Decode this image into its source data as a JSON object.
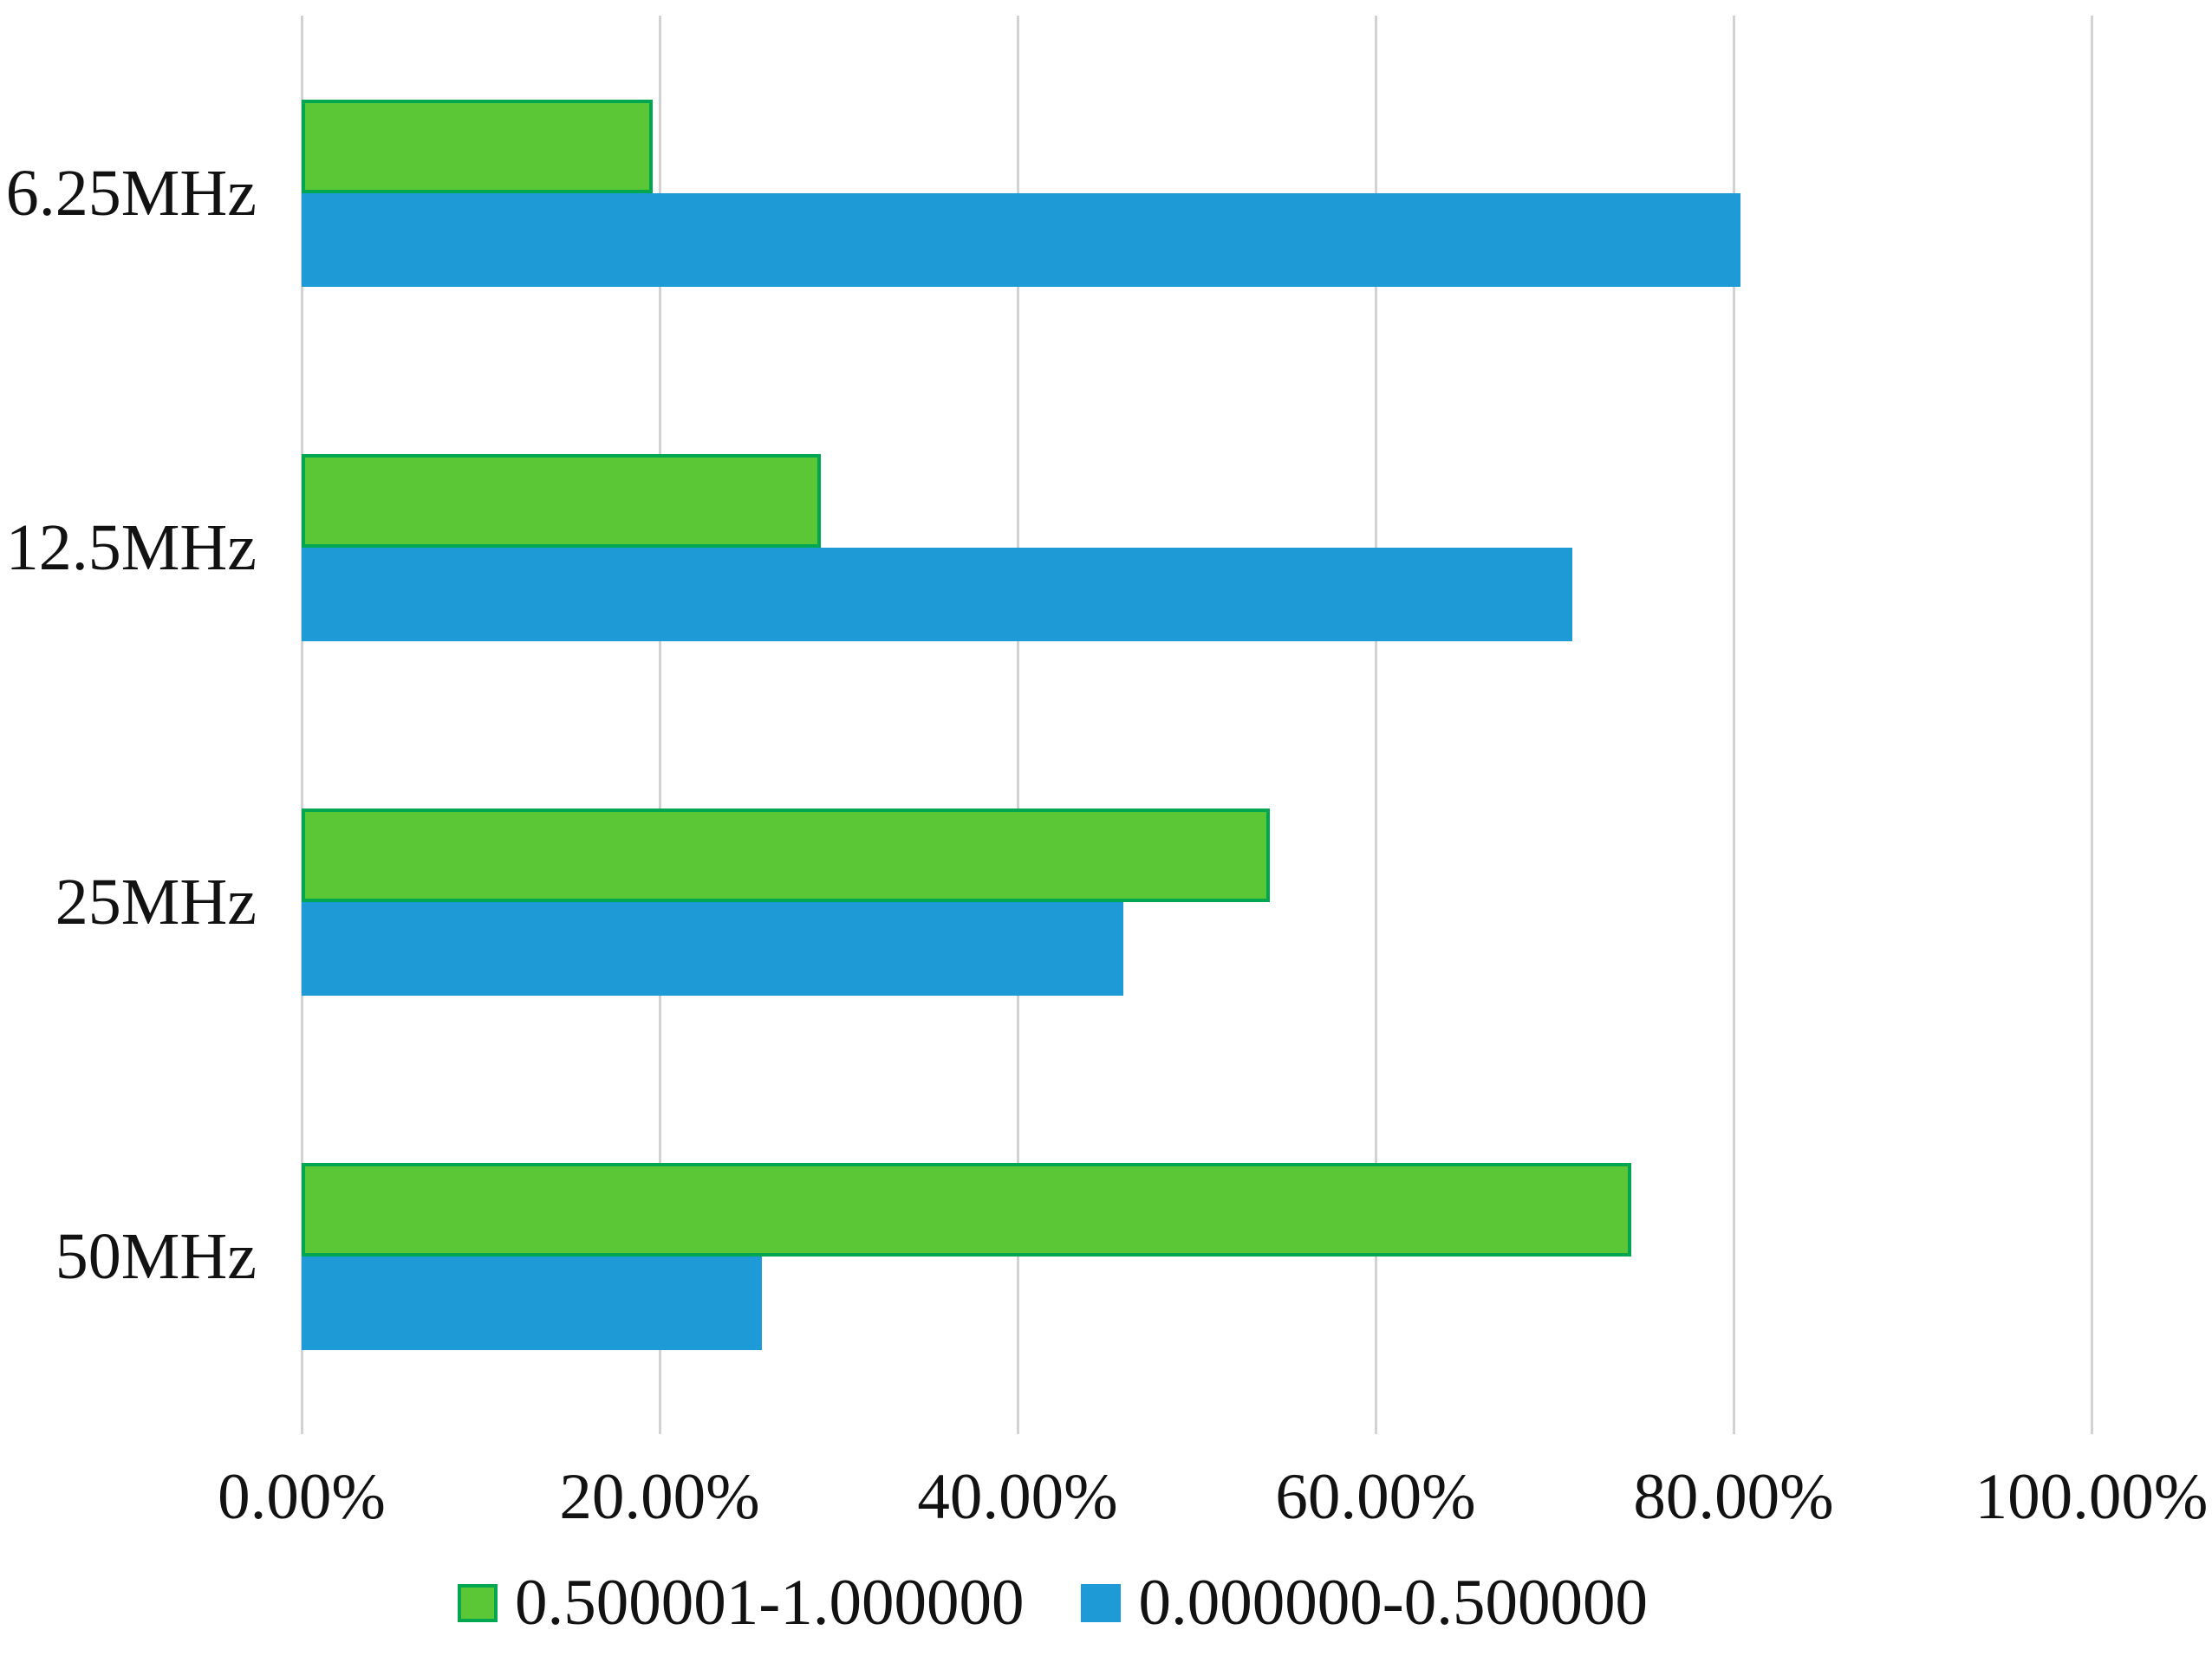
{
  "chart_data": {
    "type": "bar",
    "orientation": "horizontal",
    "title": "",
    "categories": [
      "6.25MHz",
      "12.5MHz",
      "25MHz",
      "50MHz"
    ],
    "series": [
      {
        "name": "0.500001-1.000000",
        "color": "#5BC636",
        "border_color": "#00A650",
        "values": [
          19.6,
          29.0,
          54.1,
          74.3
        ]
      },
      {
        "name": "0.000000-0.500000",
        "color": "#1E9AD6",
        "border_color": "#1E9AD6",
        "values": [
          80.4,
          71.0,
          45.9,
          25.7
        ]
      }
    ],
    "x_axis": {
      "tick_labels": [
        "0.00%",
        "20.00%",
        "40.00%",
        "60.00%",
        "80.00%",
        "100.00%"
      ],
      "min": 0,
      "max": 100,
      "unit": "%"
    },
    "gridlines": "vertical",
    "legend_position": "bottom",
    "colors": {
      "gridline": "#D2D2D2",
      "background": "#FFFFFF",
      "text": "#121212"
    }
  }
}
